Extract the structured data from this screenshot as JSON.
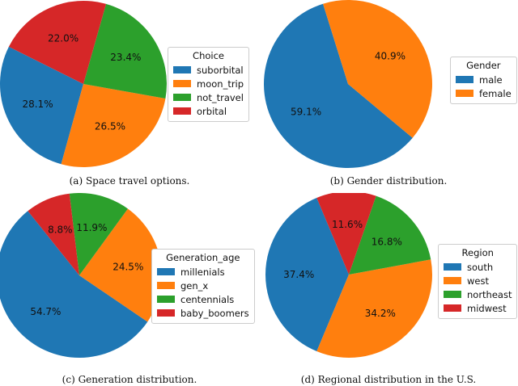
{
  "chart_data": [
    {
      "type": "pie",
      "caption": "(a) Space travel options.",
      "legend_title": "Choice",
      "legend_placement": "right",
      "categories": [
        "suborbital",
        "moon_trip",
        "not_travel",
        "orbital"
      ],
      "values": [
        28.1,
        26.5,
        23.4,
        22.0
      ],
      "labels": [
        "28.1%",
        "26.5%",
        "23.4%",
        "22.0%"
      ],
      "colors": [
        "#1f77b4",
        "#ff7f0e",
        "#2ca02c",
        "#d62728"
      ],
      "start_angle_deg": 153.4
    },
    {
      "type": "pie",
      "caption": "(b) Gender distribution.",
      "legend_title": "Gender",
      "legend_placement": "right",
      "categories": [
        "male",
        "female"
      ],
      "values": [
        59.1,
        40.9
      ],
      "labels": [
        "59.1%",
        "40.9%"
      ],
      "colors": [
        "#1f77b4",
        "#ff7f0e"
      ],
      "start_angle_deg": 107.3
    },
    {
      "type": "pie",
      "caption": "(c) Generation distribution.",
      "legend_title": "Generation_age",
      "legend_placement": "right",
      "categories": [
        "millenials",
        "gen_x",
        "centennials",
        "baby_boomers"
      ],
      "values": [
        54.7,
        24.5,
        11.9,
        8.8
      ],
      "labels": [
        "54.7%",
        "24.5%",
        "11.9%",
        "8.8%"
      ],
      "colors": [
        "#1f77b4",
        "#ff7f0e",
        "#2ca02c",
        "#d62728"
      ],
      "start_angle_deg": 128.6
    },
    {
      "type": "pie",
      "caption": "(d) Regional distribution in the U.S.",
      "legend_title": "Region",
      "legend_placement": "right",
      "categories": [
        "south",
        "west",
        "northeast",
        "midwest"
      ],
      "values": [
        37.4,
        34.2,
        16.8,
        11.6
      ],
      "labels": [
        "37.4%",
        "34.2%",
        "16.8%",
        "11.6%"
      ],
      "colors": [
        "#1f77b4",
        "#ff7f0e",
        "#2ca02c",
        "#d62728"
      ],
      "start_angle_deg": 112.7
    }
  ]
}
